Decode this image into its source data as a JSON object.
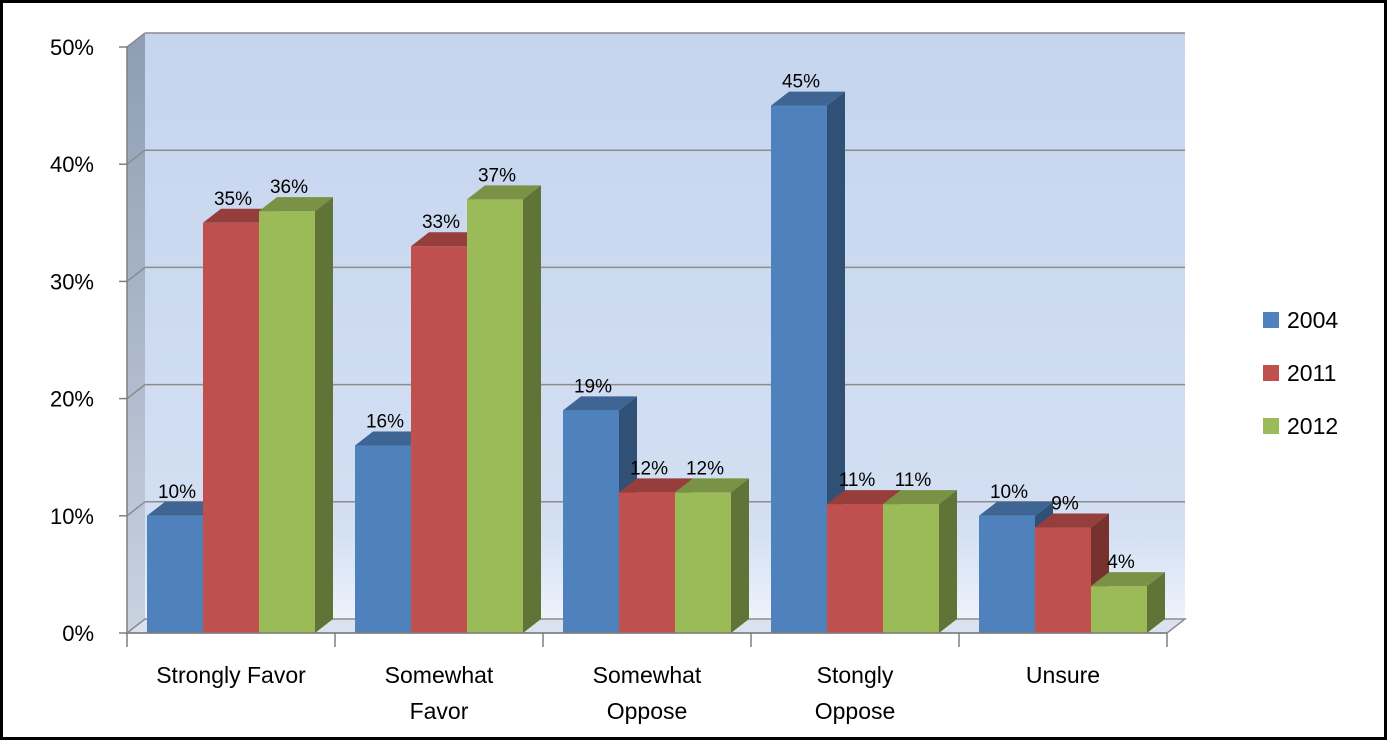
{
  "chart_data": {
    "type": "bar",
    "title": "",
    "xlabel": "",
    "ylabel": "",
    "categories": [
      [
        "Strongly Favor"
      ],
      [
        "Somewhat",
        "Favor"
      ],
      [
        "Somewhat",
        "Oppose"
      ],
      [
        "Stongly",
        "Oppose"
      ],
      [
        "Unsure"
      ]
    ],
    "series": [
      {
        "name": "2004",
        "values": [
          10,
          16,
          19,
          45,
          10
        ]
      },
      {
        "name": "2011",
        "values": [
          35,
          33,
          12,
          11,
          9
        ]
      },
      {
        "name": "2012",
        "values": [
          36,
          37,
          12,
          11,
          4
        ]
      }
    ],
    "value_suffix": "%",
    "ylim": [
      0,
      50
    ],
    "yticks": [
      "0%",
      "10%",
      "20%",
      "30%",
      "40%",
      "50%"
    ],
    "grid": true,
    "style": "3d clustered column",
    "legend_position": "right"
  },
  "colors": {
    "series": [
      "#4F81BD",
      "#C0504D",
      "#9BBB59"
    ],
    "wall_top": "#C5D5EE",
    "wall_bottom": "#E6EEF9"
  }
}
